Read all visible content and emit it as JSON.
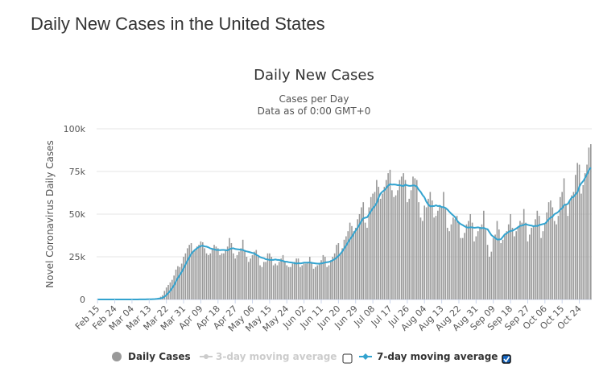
{
  "page": {
    "title": "Daily New Cases in the United States"
  },
  "chart_data": {
    "type": "bar",
    "title": "Daily New Cases",
    "subtitle": "Cases per Day",
    "subtitle2": "Data as of 0:00 GMT+0",
    "ylabel": "Novel Coronavirus Daily Cases",
    "xlabel": "",
    "ylim": [
      0,
      100000
    ],
    "yticks": [
      0,
      25000,
      50000,
      75000,
      100000
    ],
    "ytick_labels": [
      "0",
      "25k",
      "50k",
      "75k",
      "100k"
    ],
    "grid": true,
    "x_tick_labels": [
      "Feb 15",
      "Feb 24",
      "Mar 04",
      "Mar 13",
      "Mar 22",
      "Mar 31",
      "Apr 09",
      "Apr 18",
      "Apr 27",
      "May 06",
      "May 15",
      "May 24",
      "Jun 02",
      "Jun 11",
      "Jun 20",
      "Jun 29",
      "Jul 08",
      "Jul 17",
      "Jul 26",
      "Aug 04",
      "Aug 13",
      "Aug 22",
      "Aug 31",
      "Sep 09",
      "Sep 18",
      "Sep 27",
      "Oct 06",
      "Oct 15",
      "Oct 24"
    ],
    "x_tick_every_days": 9,
    "colors": {
      "bars": "#999999",
      "line7": "#33a3cf",
      "line3": "#cccccc"
    },
    "legend": {
      "placement": "bottom",
      "items": [
        {
          "label": "Daily Cases",
          "active": true
        },
        {
          "label": "3-day moving average",
          "active": false,
          "checked": false
        },
        {
          "label": "7-day moving average",
          "active": true,
          "checked": true
        }
      ]
    },
    "series": [
      {
        "name": "Daily Cases",
        "values": [
          0,
          0,
          0,
          0,
          0,
          0,
          0,
          0,
          0,
          0,
          0,
          0,
          0,
          0,
          8,
          6,
          10,
          12,
          14,
          18,
          22,
          60,
          70,
          80,
          100,
          120,
          150,
          200,
          300,
          400,
          500,
          700,
          1000,
          1600,
          2500,
          5000,
          7000,
          8500,
          10000,
          11500,
          14000,
          17500,
          19500,
          19000,
          21000,
          25000,
          27000,
          30000,
          32000,
          33000,
          28000,
          29000,
          31000,
          32000,
          34000,
          33500,
          30000,
          27000,
          26000,
          27000,
          30000,
          32000,
          31000,
          30000,
          26000,
          27000,
          27000,
          29000,
          31000,
          36000,
          33000,
          27000,
          24000,
          26000,
          28000,
          30000,
          35000,
          29000,
          25000,
          22000,
          24000,
          26000,
          28000,
          29000,
          25000,
          20000,
          19000,
          22000,
          22000,
          27000,
          27000,
          25000,
          20000,
          21000,
          20000,
          22000,
          24000,
          26000,
          22000,
          20000,
          19000,
          19000,
          21000,
          22000,
          24000,
          24000,
          19000,
          20000,
          21000,
          21000,
          22000,
          25000,
          22000,
          18000,
          19000,
          20000,
          21000,
          23000,
          26000,
          25000,
          19000,
          20000,
          23000,
          25000,
          27000,
          32000,
          33000,
          27000,
          30000,
          35000,
          37000,
          40000,
          45000,
          43000,
          40000,
          42000,
          47000,
          50000,
          54000,
          57000,
          45000,
          42000,
          54000,
          60000,
          62000,
          63000,
          70000,
          66000,
          59000,
          62000,
          66000,
          70000,
          74000,
          76000,
          64000,
          60000,
          61000,
          64000,
          70000,
          72000,
          74000,
          70000,
          57000,
          59000,
          64000,
          72000,
          71000,
          70000,
          57000,
          48000,
          46000,
          55000,
          54000,
          59000,
          63000,
          58000,
          48000,
          49000,
          52000,
          55000,
          54000,
          63000,
          54000,
          42000,
          40000,
          44000,
          48000,
          47000,
          49000,
          45000,
          36000,
          36000,
          39000,
          44000,
          46000,
          50000,
          45000,
          34000,
          37000,
          40000,
          42000,
          44000,
          52000,
          41000,
          32000,
          25000,
          28000,
          36000,
          38000,
          46000,
          41000,
          33000,
          35000,
          38000,
          40000,
          44000,
          50000,
          42000,
          37000,
          40000,
          43000,
          46000,
          45000,
          53000,
          45000,
          34000,
          38000,
          42000,
          43000,
          47000,
          52000,
          49000,
          36000,
          40000,
          44000,
          51000,
          57000,
          58000,
          54000,
          46000,
          44000,
          49000,
          60000,
          63000,
          71000,
          56000,
          49000,
          58000,
          61000,
          63000,
          73000,
          80000,
          79000,
          62000,
          67000,
          74000,
          79000,
          89000,
          91000
        ]
      },
      {
        "name": "7-day moving average",
        "derived_from": "Daily Cases",
        "window": 7
      }
    ]
  }
}
